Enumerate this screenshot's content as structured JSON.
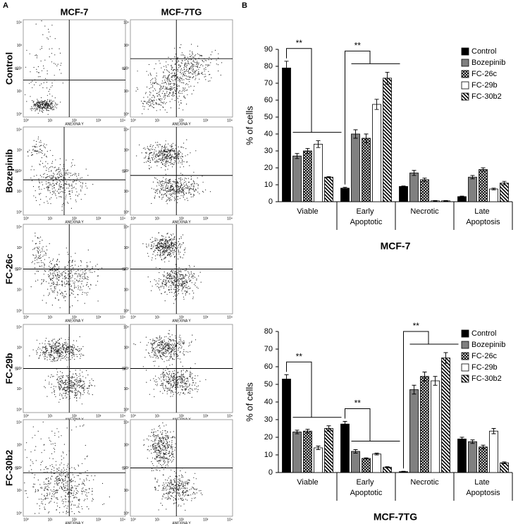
{
  "figure": {
    "panel_a_label": "A",
    "panel_b_label": "B"
  },
  "flow_panel": {
    "columns": [
      "MCF-7",
      "MCF-7TG"
    ],
    "rows": [
      "Control",
      "Bozepinib",
      "FC-26c",
      "FC-29b",
      "FC-30b2"
    ],
    "x_label": "ANEXINA Y",
    "y_label": "IP",
    "ticks": [
      "10⁰",
      "10¹",
      "10²",
      "10³",
      "10⁴"
    ]
  },
  "chart_data": [
    {
      "type": "bar",
      "x_label": "MCF-7",
      "y_label": "% of cells",
      "categories": [
        "Viable",
        "Early Apoptotic",
        "Necrotic",
        "Late Apoptosis"
      ],
      "ylim": [
        0,
        90
      ],
      "yticks": [
        0,
        10,
        20,
        30,
        40,
        50,
        60,
        70,
        80,
        90
      ],
      "legend": "upper right",
      "annotations": [
        "**",
        "**"
      ],
      "series": [
        {
          "name": "Control",
          "color": "#000000",
          "pattern": "solid",
          "values": [
            79,
            8,
            9,
            3
          ],
          "errors": [
            4,
            0.5,
            0.3,
            0.3
          ]
        },
        {
          "name": "Bozepinib",
          "color": "#808080",
          "pattern": "solid",
          "values": [
            27,
            40,
            17,
            14.5
          ],
          "errors": [
            1.5,
            2.5,
            1.5,
            1
          ]
        },
        {
          "name": "FC-26c",
          "color": "#000000",
          "pattern": "crosshatch",
          "values": [
            30,
            37.5,
            13,
            19
          ],
          "errors": [
            1.5,
            2.5,
            1,
            1
          ]
        },
        {
          "name": "FC-29b",
          "color": "#ffffff",
          "pattern": "solid",
          "values": [
            34,
            57.5,
            0.5,
            7.5
          ],
          "errors": [
            2,
            3,
            0.2,
            0.5
          ]
        },
        {
          "name": "FC-30b2",
          "color": "#000000",
          "pattern": "diagonal",
          "values": [
            14.5,
            73,
            0.5,
            11
          ],
          "errors": [
            0.3,
            3.5,
            0.2,
            1
          ]
        }
      ]
    },
    {
      "type": "bar",
      "x_label": "MCF-7TG",
      "y_label": "% of cells",
      "categories": [
        "Viable",
        "Early Apoptotic",
        "Necrotic",
        "Late Apoptosis"
      ],
      "ylim": [
        0,
        80
      ],
      "yticks": [
        0,
        10,
        20,
        30,
        40,
        50,
        60,
        70,
        80
      ],
      "legend": "upper right",
      "annotations": [
        "**",
        "**",
        "**"
      ],
      "series": [
        {
          "name": "Control",
          "color": "#000000",
          "pattern": "solid",
          "values": [
            53,
            27.5,
            0.5,
            19
          ],
          "errors": [
            2.5,
            1.5,
            0.2,
            1
          ]
        },
        {
          "name": "Bozepinib",
          "color": "#808080",
          "pattern": "solid",
          "values": [
            23,
            12,
            47,
            17.5
          ],
          "errors": [
            1,
            1,
            2.5,
            1
          ]
        },
        {
          "name": "FC-26c",
          "color": "#000000",
          "pattern": "crosshatch",
          "values": [
            23.5,
            8,
            54.5,
            14.5
          ],
          "errors": [
            1,
            0.3,
            2.5,
            1
          ]
        },
        {
          "name": "FC-29b",
          "color": "#ffffff",
          "pattern": "solid",
          "values": [
            14,
            10.5,
            52,
            23.5
          ],
          "errors": [
            1,
            0.5,
            2.5,
            1.5
          ]
        },
        {
          "name": "FC-30b2",
          "color": "#000000",
          "pattern": "diagonal",
          "values": [
            25,
            3,
            65,
            5.5
          ],
          "errors": [
            1.5,
            0.3,
            3,
            0.5
          ]
        }
      ]
    }
  ]
}
